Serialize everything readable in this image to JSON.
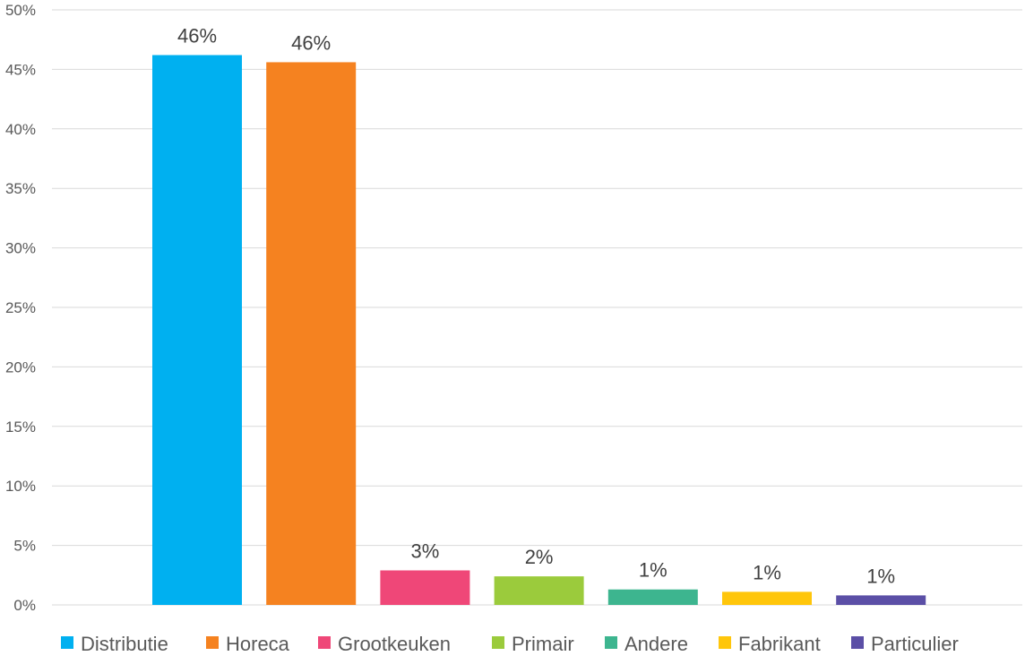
{
  "chart_data": {
    "type": "bar",
    "title": "",
    "xlabel": "",
    "ylabel": "",
    "ylim": [
      0,
      0.5
    ],
    "yticks": [
      "0%",
      "5%",
      "10%",
      "15%",
      "20%",
      "25%",
      "30%",
      "35%",
      "40%",
      "45%",
      "50%"
    ],
    "grid": true,
    "legend_position": "bottom",
    "series": [
      {
        "name": "Distributie",
        "value": 0.462,
        "label": "46%",
        "color": "#00B0F0"
      },
      {
        "name": "Horeca",
        "value": 0.456,
        "label": "46%",
        "color": "#F58220"
      },
      {
        "name": "Grootkeuken",
        "value": 0.029,
        "label": "3%",
        "color": "#EF4778"
      },
      {
        "name": "Primair",
        "value": 0.024,
        "label": "2%",
        "color": "#9BCB3C"
      },
      {
        "name": "Andere",
        "value": 0.013,
        "label": "1%",
        "color": "#3DB58F"
      },
      {
        "name": "Fabrikant",
        "value": 0.011,
        "label": "1%",
        "color": "#FFC60B"
      },
      {
        "name": "Particulier",
        "value": 0.008,
        "label": "1%",
        "color": "#5B4FA6"
      }
    ]
  }
}
